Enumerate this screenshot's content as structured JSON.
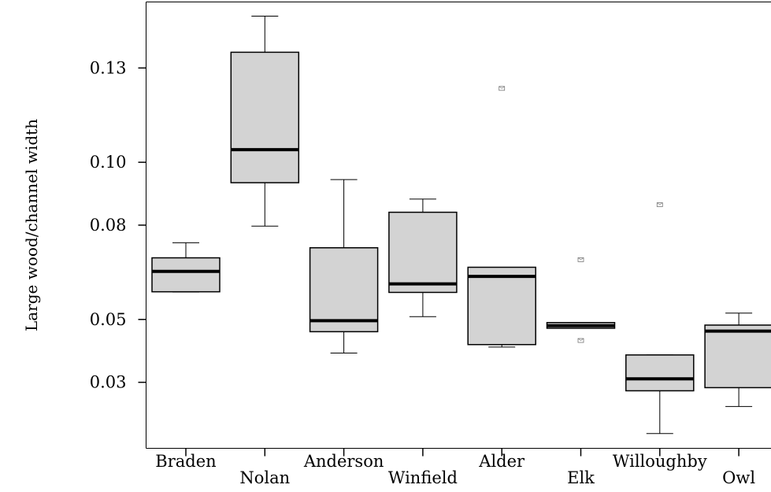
{
  "chart_data": {
    "type": "boxplot",
    "title": "",
    "xlabel": "",
    "ylabel": "Large wood/channel width",
    "y_ticks": [
      0.03,
      0.05,
      0.08,
      0.1,
      0.13
    ],
    "y_tick_labels": [
      "0.03",
      "0.05",
      "0.08",
      "0.10",
      "0.13"
    ],
    "ylim": [
      0.009,
      0.151
    ],
    "grid": false,
    "box_color": "#d3d3d3",
    "categories": [
      "Braden",
      "Nolan",
      "Anderson",
      "Winfield",
      "Alder",
      "Elk",
      "Willoughby",
      "Owl"
    ],
    "boxes": [
      {
        "name": "Braden",
        "whisker_low": 0.0587,
        "q1": 0.0588,
        "median": 0.0653,
        "q3": 0.0696,
        "whisker_high": 0.0744,
        "outliers": []
      },
      {
        "name": "Nolan",
        "whisker_low": 0.0797,
        "q1": 0.0935,
        "median": 0.104,
        "q3": 0.135,
        "whisker_high": 0.1465,
        "outliers": []
      },
      {
        "name": "Anderson",
        "whisker_low": 0.0393,
        "q1": 0.0461,
        "median": 0.0496,
        "q3": 0.0728,
        "whisker_high": 0.0945,
        "outliers": []
      },
      {
        "name": "Winfield",
        "whisker_low": 0.0509,
        "q1": 0.0586,
        "median": 0.0613,
        "q3": 0.0841,
        "whisker_high": 0.0883,
        "outliers": []
      },
      {
        "name": "Alder",
        "whisker_low": 0.0412,
        "q1": 0.042,
        "median": 0.0637,
        "q3": 0.0666,
        "whisker_high": 0.0666,
        "outliers": [
          0.1235
        ]
      },
      {
        "name": "Elk",
        "whisker_low": 0.0472,
        "q1": 0.0472,
        "median": 0.048,
        "q3": 0.049,
        "whisker_high": 0.049,
        "outliers": [
          0.069,
          0.0433
        ]
      },
      {
        "name": "Willoughby",
        "whisker_low": 0.0137,
        "q1": 0.0273,
        "median": 0.0311,
        "q3": 0.0387,
        "whisker_high": 0.0387,
        "outliers": [
          0.0865
        ]
      },
      {
        "name": "Owl",
        "whisker_low": 0.0223,
        "q1": 0.0283,
        "median": 0.0463,
        "q3": 0.0482,
        "whisker_high": 0.052,
        "outliers": []
      }
    ]
  }
}
